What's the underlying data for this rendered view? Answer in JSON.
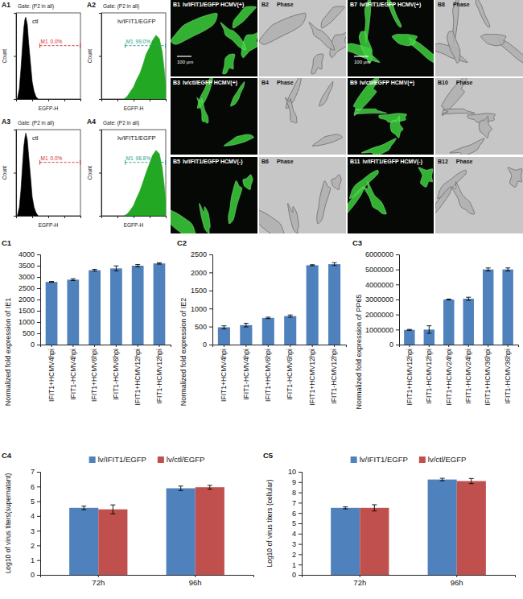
{
  "chart_data": [
    {
      "type": "area",
      "panel_label": "A1",
      "subtitle": "Gate: (P2 in all)",
      "title": "ctl",
      "x_label": "EGFP-H",
      "y_label": "Count",
      "log": "x",
      "xlim": [
        1,
        10000
      ],
      "xticks": [
        1,
        10,
        100,
        1000,
        10000
      ],
      "ylim": [
        0,
        100
      ],
      "yticks": [
        0,
        50,
        100
      ],
      "tick_labels": false,
      "color": "#000000",
      "x": [
        1.2,
        1.6,
        2,
        2.5,
        3,
        3.5,
        4,
        5,
        6,
        8,
        10,
        13,
        17,
        23
      ],
      "values": [
        0,
        12,
        35,
        62,
        82,
        92,
        95,
        86,
        66,
        40,
        20,
        9,
        3,
        0
      ],
      "gate": {
        "label": "M1",
        "range": [
          30,
          10000
        ],
        "percent": {
          "value": 0.0,
          "label": "0.0%"
        },
        "color": "#d42a2a"
      }
    },
    {
      "type": "area",
      "panel_label": "A2",
      "subtitle": "Gate: (P2 in all)",
      "title": "lv/IFIT1/EGFP",
      "x_label": "EGFP-H",
      "y_label": "Count",
      "log": "x",
      "xlim": [
        1,
        10000
      ],
      "xticks": [
        1,
        10,
        100,
        1000,
        10000
      ],
      "ylim": [
        0,
        100
      ],
      "yticks": [
        0,
        50,
        100
      ],
      "tick_labels": false,
      "color": "#22a822",
      "x": [
        25,
        40,
        60,
        100,
        150,
        250,
        400,
        600,
        1000,
        1500,
        2500,
        4000,
        6000,
        8000,
        10000
      ],
      "values": [
        0,
        3,
        8,
        14,
        22,
        30,
        41,
        52,
        60,
        68,
        74,
        70,
        55,
        35,
        15
      ],
      "gate": {
        "label": "M1",
        "range": [
          30,
          10000
        ],
        "percent": {
          "value": 99.0,
          "label": "99.0%"
        },
        "color": "#1f9e89"
      }
    },
    {
      "type": "area",
      "panel_label": "A3",
      "subtitle": "Gate: (P2 in all)",
      "title": "ctl",
      "x_label": "EGFP-H",
      "y_label": "Count",
      "log": "x",
      "xlim": [
        1,
        10000
      ],
      "xticks": [
        1,
        10,
        100,
        1000,
        10000
      ],
      "ylim": [
        0,
        100
      ],
      "yticks": [
        0,
        50,
        100
      ],
      "tick_labels": false,
      "color": "#000000",
      "x": [
        1.2,
        1.6,
        2,
        2.5,
        3,
        3.5,
        4,
        5,
        6,
        8,
        10,
        13,
        17,
        23
      ],
      "values": [
        0,
        10,
        30,
        58,
        80,
        90,
        96,
        88,
        70,
        44,
        22,
        10,
        4,
        0
      ],
      "gate": {
        "label": "M1",
        "range": [
          30,
          10000
        ],
        "percent": {
          "value": 0.0,
          "label": "0.0%"
        },
        "color": "#d42a2a"
      }
    },
    {
      "type": "area",
      "panel_label": "A4",
      "subtitle": "Gate: (P2 in all)",
      "title": "lv/IFIT1/EGFP",
      "x_label": "EGFP-H",
      "y_label": "Count",
      "log": "x",
      "xlim": [
        1,
        10000
      ],
      "xticks": [
        1,
        10,
        100,
        1000,
        10000
      ],
      "ylim": [
        0,
        100
      ],
      "yticks": [
        0,
        50,
        100
      ],
      "tick_labels": false,
      "color": "#22a822",
      "x": [
        25,
        40,
        60,
        100,
        150,
        250,
        400,
        600,
        1000,
        1500,
        2500,
        4000,
        6000,
        8000,
        10000
      ],
      "values": [
        0,
        2,
        6,
        12,
        20,
        29,
        40,
        50,
        61,
        70,
        76,
        72,
        56,
        36,
        16
      ],
      "gate": {
        "label": "M1",
        "range": [
          30,
          10000
        ],
        "percent": {
          "value": 98.8,
          "label": "98.8%"
        },
        "color": "#1f9e89"
      }
    },
    {
      "type": "bar",
      "panel_label": "C1",
      "y_label": "Normalized fold expression of IE1",
      "categories": [
        "IFIT1+HCMV4hpi",
        "IFIT1-HCMV4hpi",
        "IFIT1+HCMV6hpi",
        "IFIT1-HCMV6hpi",
        "IFIT1+HCMV12hpi",
        "IFIT1-HCMV12hpi"
      ],
      "values": [
        2780,
        2880,
        3300,
        3380,
        3500,
        3600
      ],
      "errors": [
        20,
        40,
        40,
        110,
        50,
        30
      ],
      "color": "#4f81bd",
      "ylim": [
        0,
        4000
      ],
      "yticks": [
        0,
        500,
        1000,
        1500,
        2000,
        2500,
        3000,
        3500,
        4000
      ],
      "grid": false
    },
    {
      "type": "bar",
      "panel_label": "C2",
      "y_label": "Normalized fold expression of IE2",
      "categories": [
        "IFIT1+HCMV4hpi",
        "IFIT1-HCMV4hpi",
        "IFIT1+HCMV6hpi",
        "IFIT1-HCMV6hpi",
        "IFIT1+HCMV12hpi",
        "IFIT1-HCMV12hpi"
      ],
      "values": [
        480,
        540,
        740,
        790,
        2200,
        2230
      ],
      "errors": [
        40,
        50,
        20,
        30,
        15,
        40
      ],
      "color": "#4f81bd",
      "ylim": [
        0,
        2500
      ],
      "yticks": [
        0,
        500,
        1000,
        1500,
        2000,
        2500
      ],
      "grid": false
    },
    {
      "type": "bar",
      "panel_label": "C3",
      "y_label": "Normalized fold expression of PP65",
      "categories": [
        "IFIT1+HCMV12hpi",
        "IFIT1-HCMV12hpi",
        "IFIT1+HCMV24hpi",
        "IFIT1-HCMV24hpi",
        "IFIT1+HCMV36hpi",
        "IFIT1-HCMV36hpi"
      ],
      "values": [
        980000,
        1000000,
        3000000,
        3050000,
        5000000,
        5000000
      ],
      "errors": [
        30000,
        250000,
        30000,
        100000,
        100000,
        100000
      ],
      "color": "#4f81bd",
      "ylim": [
        0,
        6000000
      ],
      "yticks": [
        0,
        1000000,
        2000000,
        3000000,
        4000000,
        5000000,
        6000000
      ],
      "grid": false
    },
    {
      "type": "bar",
      "panel_label": "C4",
      "y_label": "Log10 of virus titers(supernatant)",
      "categories": [
        "72h",
        "96h"
      ],
      "series": [
        {
          "name": "lv/IFIT1/EGFP",
          "color": "#4f81bd",
          "values": [
            4.55,
            5.88
          ],
          "errors": [
            0.12,
            0.15
          ]
        },
        {
          "name": "lv/ctl/EGFP",
          "color": "#c0504d",
          "values": [
            4.45,
            5.95
          ],
          "errors": [
            0.3,
            0.13
          ]
        }
      ],
      "ylim": [
        0,
        7
      ],
      "yticks": [
        0,
        1,
        2,
        3,
        4,
        5,
        6,
        7
      ],
      "legend": "top",
      "grid": false
    },
    {
      "type": "bar",
      "panel_label": "C5",
      "y_label": "Log10 of virus titers (cellular)",
      "categories": [
        "72h",
        "96h"
      ],
      "series": [
        {
          "name": "lv/IFIT1/EGFP",
          "color": "#4f81bd",
          "values": [
            6.5,
            9.25
          ],
          "errors": [
            0.1,
            0.12
          ]
        },
        {
          "name": "lv/ctl/EGFP",
          "color": "#c0504d",
          "values": [
            6.5,
            9.1
          ],
          "errors": [
            0.3,
            0.25
          ]
        }
      ],
      "ylim": [
        0,
        10
      ],
      "yticks": [
        0,
        1,
        2,
        3,
        4,
        5,
        6,
        7,
        8,
        9,
        10
      ],
      "legend": "top",
      "grid": false
    }
  ],
  "panels": [
    {
      "id": "B1",
      "label": "lv/IFIT1/EGFP HCMV(+)",
      "scale_bar": "100 μm"
    },
    {
      "id": "B2",
      "label": "Phase"
    },
    {
      "id": "B3",
      "label": "lv/ctl/EGFP HCMV(+)"
    },
    {
      "id": "B4",
      "label": "Phase"
    },
    {
      "id": "B5",
      "label": "lv/IFIT1/EGFP HCMV(-)"
    },
    {
      "id": "B6",
      "label": "Phase"
    },
    {
      "id": "B7",
      "label": "lv/IFIT1/EGFP HCMV(+)",
      "scale_bar": "100 μm"
    },
    {
      "id": "B8",
      "label": "Phase"
    },
    {
      "id": "B9",
      "label": "lv/ctl/EGFP HCMV(+)"
    },
    {
      "id": "B10",
      "label": "Phase"
    },
    {
      "id": "B11",
      "label": "lv/IFIT1/EGFP HCMV(-)"
    },
    {
      "id": "B12",
      "label": "Phase"
    }
  ]
}
